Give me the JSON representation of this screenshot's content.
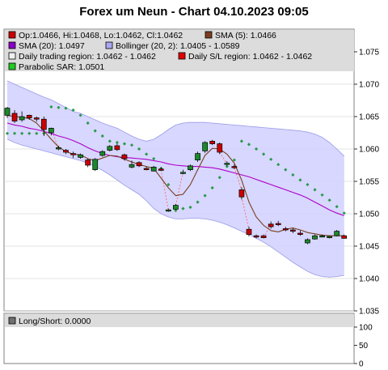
{
  "title": "Forex um Neun - Chart 04.10.2023 09:05",
  "legend": {
    "ohlc": "Op:1.0466, Hi:1.0468, Lo:1.0462, Cl:1.0462",
    "sma5": "SMA (5): 1.0466",
    "sma20": "SMA (20): 1.0497",
    "bollinger": "Bollinger (20, 2): 1.0405 - 1.0589",
    "trading_region": "Daily trading region: 1.0462 - 1.0462",
    "sl_region": "Daily S/L region: 1.0462 - 1.0462",
    "sar": "Parabolic SAR: 1.0501"
  },
  "sub_legend": "Long/Short: 0.0000",
  "colors": {
    "up": "#1a8a2a",
    "down": "#cc0000",
    "sma5": "#7a3f20",
    "sma20": "#b000c8",
    "bollinger_fill": "#d0d0ff",
    "bollinger_line": "#9a9ae8",
    "sar": "#2a9a4a",
    "legend_bg": "#dcdcdc",
    "grid": "#c8c8c8"
  },
  "chart_data": [
    {
      "type": "candlestick",
      "title": "Forex um Neun - Chart 04.10.2023 09:05",
      "ylim": [
        1.035,
        1.0785
      ],
      "yticks": [
        "1.035",
        "1.040",
        "1.045",
        "1.050",
        "1.055",
        "1.060",
        "1.065",
        "1.070",
        "1.075"
      ],
      "candles": [
        {
          "o": 1.0652,
          "h": 1.0665,
          "l": 1.0648,
          "c": 1.0663
        },
        {
          "o": 1.0655,
          "h": 1.066,
          "l": 1.064,
          "c": 1.0643
        },
        {
          "o": 1.0645,
          "h": 1.0658,
          "l": 1.0642,
          "c": 1.065
        },
        {
          "o": 1.0652,
          "h": 1.0653,
          "l": 1.0645,
          "c": 1.0648
        },
        {
          "o": 1.0648,
          "h": 1.065,
          "l": 1.0642,
          "c": 1.0647
        },
        {
          "o": 1.0646,
          "h": 1.065,
          "l": 1.062,
          "c": 1.063
        },
        {
          "o": 1.0625,
          "h": 1.0633,
          "l": 1.0621,
          "c": 1.0632
        },
        {
          "o": 1.06,
          "h": 1.0605,
          "l": 1.0598,
          "c": 1.0602
        },
        {
          "o": 1.0598,
          "h": 1.06,
          "l": 1.0592,
          "c": 1.0595
        },
        {
          "o": 1.0593,
          "h": 1.0596,
          "l": 1.0586,
          "c": 1.0591
        },
        {
          "o": 1.0587,
          "h": 1.0593,
          "l": 1.0585,
          "c": 1.0591
        },
        {
          "o": 1.0583,
          "h": 1.0585,
          "l": 1.0572,
          "c": 1.0575
        },
        {
          "o": 1.0568,
          "h": 1.0586,
          "l": 1.0566,
          "c": 1.0584
        },
        {
          "o": 1.059,
          "h": 1.0598,
          "l": 1.0588,
          "c": 1.0596
        },
        {
          "o": 1.0598,
          "h": 1.0606,
          "l": 1.0596,
          "c": 1.0604
        },
        {
          "o": 1.0605,
          "h": 1.0608,
          "l": 1.0597,
          "c": 1.0599
        },
        {
          "o": 1.0591,
          "h": 1.0593,
          "l": 1.0582,
          "c": 1.0585
        },
        {
          "o": 1.0572,
          "h": 1.0582,
          "l": 1.057,
          "c": 1.0576
        },
        {
          "o": 1.0579,
          "h": 1.0581,
          "l": 1.0572,
          "c": 1.0574
        },
        {
          "o": 1.057,
          "h": 1.0573,
          "l": 1.0567,
          "c": 1.0569
        },
        {
          "o": 1.0566,
          "h": 1.0574,
          "l": 1.0565,
          "c": 1.0572
        },
        {
          "o": 1.0569,
          "h": 1.0572,
          "l": 1.0566,
          "c": 1.0568
        },
        {
          "o": 1.0505,
          "h": 1.0508,
          "l": 1.0503,
          "c": 1.0506
        },
        {
          "o": 1.0507,
          "h": 1.0515,
          "l": 1.0506,
          "c": 1.0513
        },
        {
          "o": 1.0564,
          "h": 1.0568,
          "l": 1.0561,
          "c": 1.0564
        },
        {
          "o": 1.0568,
          "h": 1.0576,
          "l": 1.0566,
          "c": 1.0574
        },
        {
          "o": 1.0583,
          "h": 1.0596,
          "l": 1.058,
          "c": 1.0593
        },
        {
          "o": 1.0597,
          "h": 1.0612,
          "l": 1.0594,
          "c": 1.061
        },
        {
          "o": 1.0612,
          "h": 1.0614,
          "l": 1.0606,
          "c": 1.0608
        },
        {
          "o": 1.0608,
          "h": 1.061,
          "l": 1.0592,
          "c": 1.0595
        },
        {
          "o": 1.0577,
          "h": 1.0581,
          "l": 1.0574,
          "c": 1.0578
        },
        {
          "o": 1.0573,
          "h": 1.0576,
          "l": 1.0569,
          "c": 1.0571
        },
        {
          "o": 1.0537,
          "h": 1.0541,
          "l": 1.0522,
          "c": 1.0526
        },
        {
          "o": 1.0476,
          "h": 1.048,
          "l": 1.0465,
          "c": 1.0468
        },
        {
          "o": 1.0466,
          "h": 1.0468,
          "l": 1.0462,
          "c": 1.0464
        },
        {
          "o": 1.0466,
          "h": 1.0468,
          "l": 1.0462,
          "c": 1.0463
        },
        {
          "o": 1.0484,
          "h": 1.0488,
          "l": 1.0477,
          "c": 1.048
        },
        {
          "o": 1.0485,
          "h": 1.0489,
          "l": 1.0481,
          "c": 1.0483
        },
        {
          "o": 1.0477,
          "h": 1.048,
          "l": 1.0473,
          "c": 1.0475
        },
        {
          "o": 1.0475,
          "h": 1.0478,
          "l": 1.047,
          "c": 1.0474
        },
        {
          "o": 1.047,
          "h": 1.0474,
          "l": 1.0466,
          "c": 1.0468
        },
        {
          "o": 1.0455,
          "h": 1.0462,
          "l": 1.0453,
          "c": 1.046
        },
        {
          "o": 1.0461,
          "h": 1.0468,
          "l": 1.046,
          "c": 1.0466
        },
        {
          "o": 1.0466,
          "h": 1.0468,
          "l": 1.0464,
          "c": 1.0466
        },
        {
          "o": 1.0464,
          "h": 1.0466,
          "l": 1.0462,
          "c": 1.0465
        },
        {
          "o": 1.0466,
          "h": 1.0475,
          "l": 1.0465,
          "c": 1.0473
        },
        {
          "o": 1.0466,
          "h": 1.0468,
          "l": 1.0462,
          "c": 1.0462
        }
      ],
      "sma5": [
        1.0652,
        1.065,
        1.0649,
        1.0647,
        1.064,
        1.0628,
        1.0615,
        1.0603,
        1.0596,
        1.0592,
        1.0591,
        1.0585,
        1.0582,
        1.0586,
        1.059,
        1.0589,
        1.0584,
        1.058,
        1.0576,
        1.0573,
        1.057,
        1.0555,
        1.054,
        1.0528,
        1.053,
        1.0545,
        1.0568,
        1.059,
        1.0601,
        1.06,
        1.0592,
        1.0578,
        1.0552,
        1.0518,
        1.0495,
        1.0482,
        1.0474,
        1.0472,
        1.0476,
        1.0478,
        1.0475,
        1.0471,
        1.0469,
        1.0467,
        1.0466,
        1.0466,
        1.0466
      ],
      "sma20": [
        1.064,
        1.0637,
        1.0635,
        1.0632,
        1.063,
        1.0627,
        1.0624,
        1.062,
        1.0617,
        1.0613,
        1.0608,
        1.0602,
        1.0597,
        1.0593,
        1.059,
        1.0588,
        1.0587,
        1.0586,
        1.0585,
        1.0584,
        1.0582,
        1.058,
        1.0577,
        1.0575,
        1.0574,
        1.0573,
        1.0573,
        1.0572,
        1.0571,
        1.0569,
        1.0566,
        1.0563,
        1.056,
        1.0557,
        1.0553,
        1.0549,
        1.0545,
        1.0541,
        1.0537,
        1.0533,
        1.0529,
        1.0524,
        1.0518,
        1.0512,
        1.0506,
        1.0501,
        1.0497
      ],
      "bollinger_upper": [
        1.0705,
        1.07,
        1.0695,
        1.069,
        1.0685,
        1.068,
        1.0676,
        1.067,
        1.0664,
        1.0658,
        1.0655,
        1.065,
        1.0645,
        1.064,
        1.0636,
        1.0632,
        1.0626,
        1.062,
        1.0615,
        1.0612,
        1.0615,
        1.0622,
        1.063,
        1.0637,
        1.064,
        1.0641,
        1.0641,
        1.0641,
        1.064,
        1.0639,
        1.0638,
        1.0637,
        1.0636,
        1.0635,
        1.0634,
        1.0633,
        1.0632,
        1.0631,
        1.063,
        1.0629,
        1.0628,
        1.0626,
        1.0623,
        1.0618,
        1.061,
        1.06,
        1.0589
      ],
      "bollinger_lower": [
        1.0615,
        1.061,
        1.0606,
        1.0603,
        1.06,
        1.0597,
        1.0594,
        1.0591,
        1.0588,
        1.0585,
        1.0582,
        1.0578,
        1.0573,
        1.0567,
        1.056,
        1.0552,
        1.0544,
        1.0537,
        1.053,
        1.052,
        1.0508,
        1.05,
        1.0495,
        1.0492,
        1.0492,
        1.0493,
        1.0493,
        1.0492,
        1.049,
        1.0487,
        1.0483,
        1.0478,
        1.0473,
        1.0468,
        1.0462,
        1.0456,
        1.0449,
        1.0441,
        1.0433,
        1.0425,
        1.0418,
        1.0411,
        1.0406,
        1.0403,
        1.0402,
        1.0403,
        1.0405
      ],
      "sar": [
        1.0624,
        1.0624,
        1.0624,
        1.0624,
        1.0624,
        1.0624,
        1.0665,
        1.0664,
        1.0663,
        1.066,
        1.0652,
        1.064,
        1.0628,
        1.062,
        1.0612,
        1.061,
        1.0608,
        1.0606,
        1.06,
        1.0592,
        1.0585,
        1.057,
        1.0545,
        1.0505,
        1.0508,
        1.051,
        1.0518,
        1.0528,
        1.054,
        1.0556,
        1.0573,
        1.0583,
        1.0612,
        1.0607,
        1.06,
        1.0592,
        1.0584,
        1.0576,
        1.0568,
        1.056,
        1.0552,
        1.0545,
        1.0537,
        1.0529,
        1.0521,
        1.0511,
        1.0501
      ]
    },
    {
      "type": "line",
      "name": "Long/Short",
      "ylim": [
        0,
        100
      ],
      "yticks": [
        "0",
        "50",
        "100"
      ],
      "values": []
    }
  ]
}
